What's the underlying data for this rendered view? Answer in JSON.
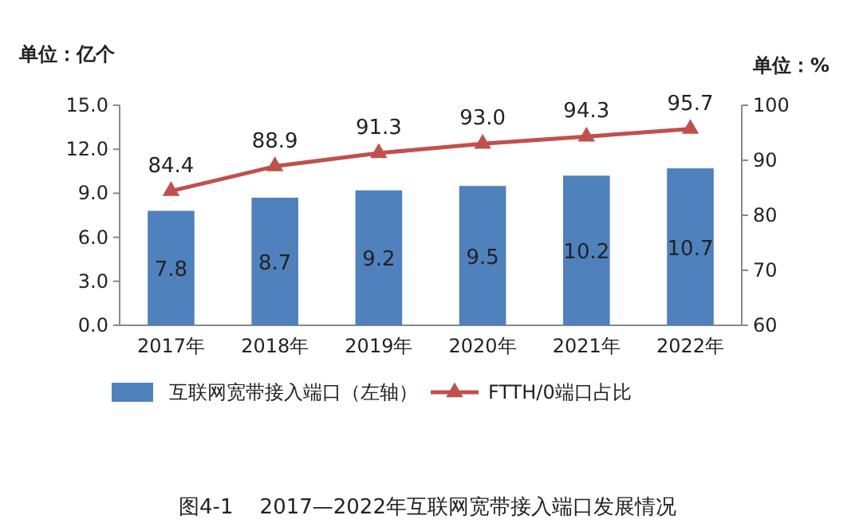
{
  "chart_data": {
    "type": "bar",
    "title": "图4-1    2017—2022年互联网宽带接入端口发展情况",
    "ylabel": "单位：亿个",
    "y2label": "单位：%",
    "categories": [
      "2017年",
      "2018年",
      "2019年",
      "2020年",
      "2021年",
      "2022年"
    ],
    "series": [
      {
        "name": "互联网宽带接入端口（左轴）",
        "color": "#4f81bd",
        "values": [
          7.8,
          8.7,
          9.2,
          9.5,
          10.2,
          10.7
        ]
      },
      {
        "name": "FTTH/0端口占比",
        "type": "line",
        "axis": "y2",
        "color": "#c0504d",
        "marker": "triangle",
        "values": [
          84.4,
          88.9,
          91.3,
          93.0,
          94.3,
          95.7
        ]
      }
    ],
    "value_labels": [
      [
        "7.8",
        "8.7",
        "9.2",
        "9.5",
        "10.2",
        "10.7"
      ],
      [
        "84.4",
        "88.9",
        "91.3",
        "93.0",
        "94.3",
        "95.7"
      ]
    ],
    "ylim": [
      0,
      15
    ],
    "yticks": [
      {
        "value": 0,
        "label": "0.0"
      },
      {
        "value": 3,
        "label": "3.0"
      },
      {
        "value": 6,
        "label": "6.0"
      },
      {
        "value": 9,
        "label": "9.0"
      },
      {
        "value": 12,
        "label": "12.0"
      },
      {
        "value": 15,
        "label": "15.0"
      }
    ],
    "y2lim": [
      60,
      100
    ],
    "y2ticks": [
      60,
      70,
      80,
      90,
      100
    ],
    "legend": "bottom"
  }
}
